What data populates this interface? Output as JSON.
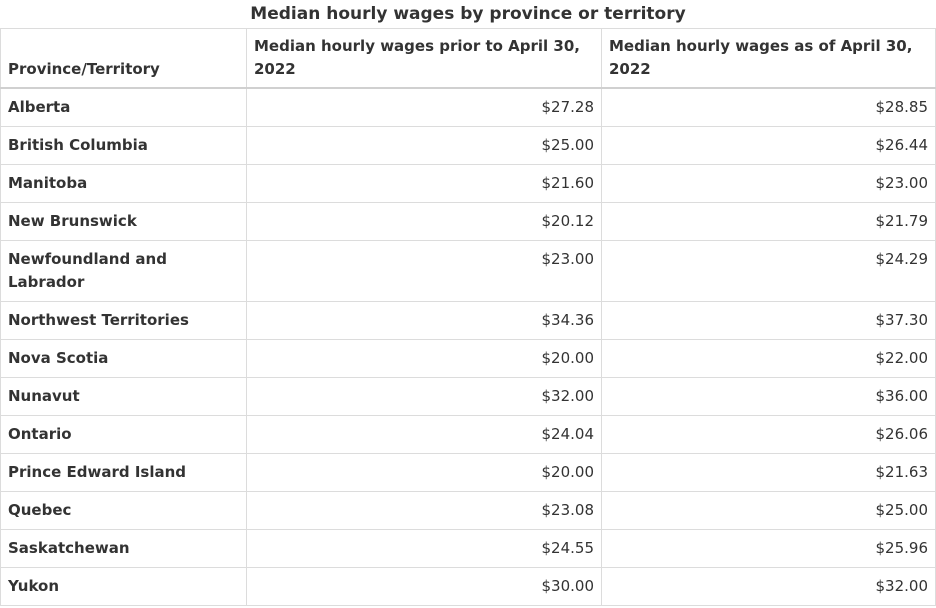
{
  "table": {
    "caption": "Median hourly wages by province or territory",
    "headers": [
      "Province/Territory",
      "Median hourly wages prior to April 30, 2022",
      "Median hourly wages as of April 30, 2022"
    ],
    "rows": [
      {
        "province": "Alberta",
        "prior": "$27.28",
        "current": "$28.85"
      },
      {
        "province": "British Columbia",
        "prior": "$25.00",
        "current": "$26.44"
      },
      {
        "province": "Manitoba",
        "prior": "$21.60",
        "current": "$23.00"
      },
      {
        "province": "New Brunswick",
        "prior": "$20.12",
        "current": "$21.79"
      },
      {
        "province": "Newfoundland and Labrador",
        "prior": "$23.00",
        "current": "$24.29"
      },
      {
        "province": "Northwest Territories",
        "prior": "$34.36",
        "current": "$37.30"
      },
      {
        "province": "Nova Scotia",
        "prior": "$20.00",
        "current": "$22.00"
      },
      {
        "province": "Nunavut",
        "prior": "$32.00",
        "current": "$36.00"
      },
      {
        "province": "Ontario",
        "prior": "$24.04",
        "current": "$26.06"
      },
      {
        "province": "Prince Edward Island",
        "prior": "$20.00",
        "current": "$21.63"
      },
      {
        "province": "Quebec",
        "prior": "$23.08",
        "current": "$25.00"
      },
      {
        "province": "Saskatchewan",
        "prior": "$24.55",
        "current": "$25.96"
      },
      {
        "province": "Yukon",
        "prior": "$30.00",
        "current": "$32.00"
      }
    ]
  }
}
